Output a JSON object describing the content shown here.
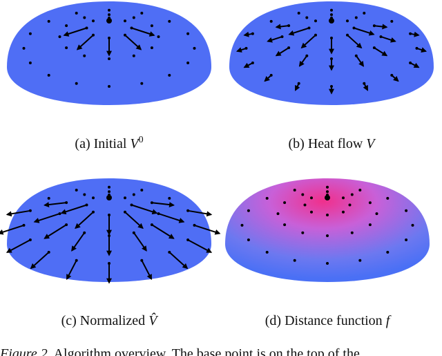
{
  "panels": [
    {
      "label": "(a)",
      "caption": "Initial",
      "math": "V",
      "sup": "0"
    },
    {
      "label": "(b)",
      "caption": "Heat flow",
      "math": "V"
    },
    {
      "label": "(c)",
      "caption": "Normalized",
      "math": "V̂"
    },
    {
      "label": "(d)",
      "caption": "Distance function",
      "math": "f"
    }
  ],
  "figure_caption": {
    "label": "Figure 2.",
    "text": "Algorithm overview. The base point is on the top of the"
  }
}
